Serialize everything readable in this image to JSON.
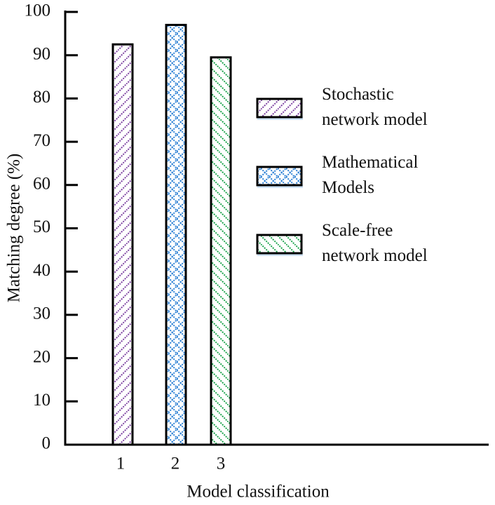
{
  "chart_data": {
    "type": "bar",
    "ylabel": "Matching degree (%)",
    "xlabel": "Model classification",
    "categories": [
      "1",
      "2",
      "3"
    ],
    "series": [
      {
        "name": "Stochastic\nnetwork model",
        "color": "#7b3fa0",
        "hatch": "forward",
        "values": [
          92.5,
          null,
          null
        ]
      },
      {
        "name": "Mathematical\nModels",
        "color": "#2a7fd4",
        "hatch": "cross",
        "values": [
          null,
          97,
          null
        ]
      },
      {
        "name": "Scale-free\nnetwork model",
        "color": "#1aa34a",
        "hatch": "backward",
        "values": [
          null,
          null,
          89.5
        ]
      }
    ],
    "ylim": [
      0,
      100
    ],
    "yticks": [
      0,
      10,
      20,
      30,
      40,
      50,
      60,
      70,
      80,
      90,
      100
    ]
  }
}
